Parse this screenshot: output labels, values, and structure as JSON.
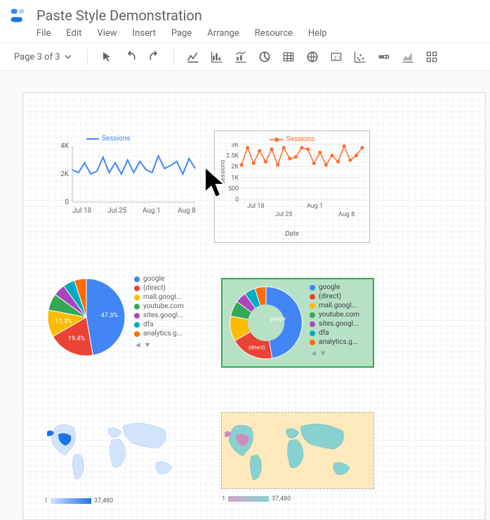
{
  "page": {
    "title": "Paste Style Demonstration",
    "menu": [
      "File",
      "Edit",
      "View",
      "Insert",
      "Page",
      "Arrange",
      "Resource",
      "Help"
    ],
    "page_indicator": "Page 3 of 3"
  },
  "colors": {
    "blue_series": "#4285f4",
    "orange_series": "#ff7f2a",
    "grid": "#e0e0e0",
    "text_muted": "#5f6368",
    "green_border": "#34a853",
    "tan_bg": "#fde9bb",
    "map_blue_dark": "#1a73e8",
    "map_blue_light": "#d2e3fc",
    "map_teal": "#88d1d1",
    "map_pink": "#d08cc0"
  },
  "line_chart_a": {
    "legend": "Sessions",
    "y_ticks": [
      "4K",
      "2K",
      "0"
    ],
    "x_labels": [
      "Jul 18",
      "Jul 25",
      "Aug 1",
      "Aug 8"
    ],
    "line_color": "#4285f4",
    "points": [
      [
        0,
        2.3
      ],
      [
        1,
        2.1
      ],
      [
        2,
        2.8
      ],
      [
        3,
        2.0
      ],
      [
        4,
        2.2
      ],
      [
        5,
        3.2
      ],
      [
        6,
        2.1
      ],
      [
        7,
        2.8
      ],
      [
        8,
        2.0
      ],
      [
        9,
        3.0
      ],
      [
        10,
        2.1
      ],
      [
        11,
        2.9
      ],
      [
        12,
        2.3
      ],
      [
        13,
        2.1
      ],
      [
        14,
        3.3
      ],
      [
        15,
        2.4
      ],
      [
        16,
        2.6
      ],
      [
        17,
        2.9
      ],
      [
        18,
        2.0
      ],
      [
        19,
        3.1
      ],
      [
        20,
        2.4
      ]
    ],
    "y_max": 4
  },
  "line_chart_b": {
    "legend": "Sessions",
    "y_ticks": [
      "3K",
      "2.5K",
      "2K",
      "1K",
      "500",
      "0"
    ],
    "x_labels_top": [
      "Jul 18",
      "Aug 1"
    ],
    "x_labels_bot": [
      "Jul 25",
      "Aug 8"
    ],
    "x_axis_title": "Date",
    "line_color": "#ff6b2b",
    "marker_color": "#ff6b2b",
    "points": [
      [
        0,
        2.2
      ],
      [
        1,
        3.3
      ],
      [
        2,
        2.3
      ],
      [
        3,
        3.1
      ],
      [
        4,
        2.4
      ],
      [
        5,
        3.2
      ],
      [
        6,
        2.2
      ],
      [
        7,
        3.3
      ],
      [
        8,
        2.6
      ],
      [
        9,
        2.7
      ],
      [
        10,
        3.3
      ],
      [
        11,
        3.2
      ],
      [
        12,
        2.3
      ],
      [
        13,
        3.0
      ],
      [
        14,
        2.2
      ],
      [
        15,
        2.8
      ],
      [
        16,
        2.4
      ],
      [
        17,
        3.4
      ],
      [
        18,
        2.5
      ],
      [
        19,
        2.8
      ],
      [
        20,
        3.3
      ]
    ],
    "y_max": 3.5
  },
  "pie_common": {
    "legend_items": [
      "google",
      "(direct)",
      "mall.googl...",
      "youtube.com",
      "sites.googl...",
      "dfa",
      "analytics.g..."
    ],
    "legend_colors": [
      "#4285f4",
      "#ea4335",
      "#fbbc05",
      "#34a853",
      "#aa46bb",
      "#00acc1",
      "#ff6d01"
    ],
    "slices": [
      47.3,
      19.4,
      11.3,
      7.0,
      5.0,
      5.0,
      5.0
    ]
  },
  "pie_a": {
    "labels": [
      "47.3%",
      "19.4%",
      "11.3%"
    ]
  },
  "donut_b": {
    "center_label": "google",
    "second_label": "(direct)"
  },
  "map_legend": {
    "min": "1",
    "max": "37,480"
  }
}
